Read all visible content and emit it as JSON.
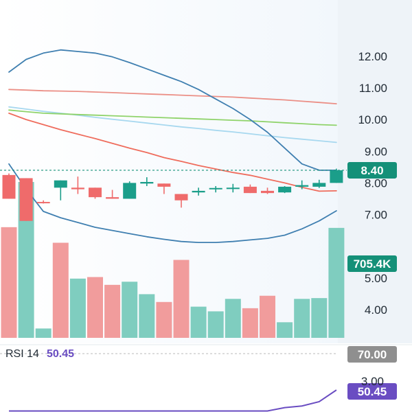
{
  "colors": {
    "up": "#1b9e8a",
    "down": "#ef6b6b",
    "up_volume": "#7fcdbf",
    "down_volume": "#f19c9c",
    "bollinger": "#3f7fb0",
    "sma_red": "#ef6c5c",
    "sma_salmon": "#eb8f86",
    "sma_green": "#8fd36a",
    "sma_light_blue": "#a7d8ef",
    "rsi_line": "#6a4dc2",
    "rsi_label": "#6a4dc2",
    "axis_band": "#eef3f8",
    "price_tag": "#149078",
    "volume_tag": "#149078",
    "rsi_70_tag": "#8f8f8f",
    "rsi_value_tag": "#6a4dc2"
  },
  "chart_data": {
    "type": "candlestick",
    "price_ticks": [
      "12.00",
      "11.00",
      "10.00",
      "9.00",
      "8.00",
      "7.00",
      "5.00",
      "4.00"
    ],
    "price_ylim": [
      3.0,
      12.8
    ],
    "last_price": 8.4,
    "last_price_label": "8.40",
    "last_volume_label": "705.4K",
    "candles": [
      {
        "o": 8.25,
        "h": 8.3,
        "c": 7.5,
        "l": 7.5
      },
      {
        "o": 8.15,
        "h": 8.15,
        "c": 6.8,
        "l": 6.8
      },
      {
        "o": 7.4,
        "h": 7.45,
        "c": 7.38,
        "l": 7.35
      },
      {
        "o": 7.85,
        "h": 8.08,
        "c": 8.08,
        "l": 7.45
      },
      {
        "o": 7.85,
        "h": 8.2,
        "c": 7.8,
        "l": 7.65
      },
      {
        "o": 7.85,
        "h": 7.85,
        "c": 7.55,
        "l": 7.5
      },
      {
        "o": 7.55,
        "h": 7.78,
        "c": 7.5,
        "l": 7.5
      },
      {
        "o": 7.5,
        "h": 8.05,
        "c": 8.0,
        "l": 7.5
      },
      {
        "o": 7.98,
        "h": 8.18,
        "c": 8.03,
        "l": 7.9
      },
      {
        "o": 7.98,
        "h": 7.98,
        "c": 7.88,
        "l": 7.65
      },
      {
        "o": 7.65,
        "h": 7.65,
        "c": 7.45,
        "l": 7.22
      },
      {
        "o": 7.7,
        "h": 7.85,
        "c": 7.75,
        "l": 7.6
      },
      {
        "o": 7.82,
        "h": 7.9,
        "c": 7.84,
        "l": 7.7
      },
      {
        "o": 7.84,
        "h": 7.97,
        "c": 7.85,
        "l": 7.7
      },
      {
        "o": 7.88,
        "h": 7.95,
        "c": 7.68,
        "l": 7.68
      },
      {
        "o": 7.75,
        "h": 7.85,
        "c": 7.68,
        "l": 7.65
      },
      {
        "o": 7.7,
        "h": 7.9,
        "c": 7.88,
        "l": 7.68
      },
      {
        "o": 7.88,
        "h": 8.08,
        "c": 7.93,
        "l": 7.8
      },
      {
        "o": 7.88,
        "h": 8.1,
        "c": 8.0,
        "l": 7.84
      },
      {
        "o": 8.0,
        "h": 8.45,
        "c": 8.4,
        "l": 8.0
      }
    ],
    "volume_ylim": [
      0,
      1000000
    ],
    "volumes": [
      710000,
      1000000,
      60000,
      610000,
      380000,
      390000,
      340000,
      360000,
      280000,
      230000,
      500000,
      200000,
      170000,
      250000,
      190000,
      270000,
      100000,
      250000,
      255000,
      705400
    ],
    "volume_up": [
      false,
      true,
      true,
      false,
      true,
      false,
      false,
      true,
      true,
      false,
      false,
      true,
      true,
      true,
      false,
      false,
      true,
      true,
      true,
      true
    ],
    "bollinger_upper": [
      11.5,
      11.9,
      12.1,
      12.2,
      12.15,
      12.1,
      11.98,
      11.8,
      11.6,
      11.4,
      11.2,
      10.95,
      10.65,
      10.35,
      10.0,
      9.6,
      9.1,
      8.6,
      8.4,
      8.4
    ],
    "bollinger_lower": [
      8.6,
      7.8,
      7.1,
      6.9,
      6.75,
      6.6,
      6.5,
      6.4,
      6.3,
      6.22,
      6.15,
      6.12,
      6.12,
      6.15,
      6.2,
      6.25,
      6.35,
      6.55,
      6.8,
      7.12
    ],
    "ma_red": [
      10.2,
      10.0,
      9.84,
      9.68,
      9.54,
      9.4,
      9.25,
      9.1,
      8.96,
      8.8,
      8.68,
      8.55,
      8.44,
      8.33,
      8.24,
      8.12,
      8.0,
      7.86,
      7.74,
      7.75
    ],
    "ma_salmon": [
      10.95,
      10.93,
      10.91,
      10.9,
      10.89,
      10.87,
      10.85,
      10.83,
      10.81,
      10.79,
      10.77,
      10.75,
      10.73,
      10.71,
      10.68,
      10.65,
      10.62,
      10.58,
      10.54,
      10.5
    ],
    "ma_green": [
      10.3,
      10.25,
      10.2,
      10.18,
      10.16,
      10.14,
      10.12,
      10.1,
      10.08,
      10.06,
      10.04,
      10.02,
      10.0,
      9.98,
      9.96,
      9.93,
      9.9,
      9.87,
      9.84,
      9.82
    ],
    "ma_light_blue": [
      10.4,
      10.33,
      10.26,
      10.2,
      10.14,
      10.07,
      10.01,
      9.95,
      9.89,
      9.83,
      9.77,
      9.72,
      9.66,
      9.61,
      9.55,
      9.49,
      9.43,
      9.38,
      9.33,
      9.28
    ],
    "rsi_label": "RSI 14",
    "rsi_value_label": "50.45",
    "rsi_70_label": "70.00",
    "rsi_lower_tick": "3.00",
    "rsi_ylim": [
      37,
      72
    ],
    "rsi_series": [
      38,
      38,
      38,
      38,
      38,
      38,
      38,
      38,
      38,
      38,
      38,
      38,
      38,
      38,
      38,
      38,
      40,
      41,
      43.5,
      50.45
    ]
  }
}
